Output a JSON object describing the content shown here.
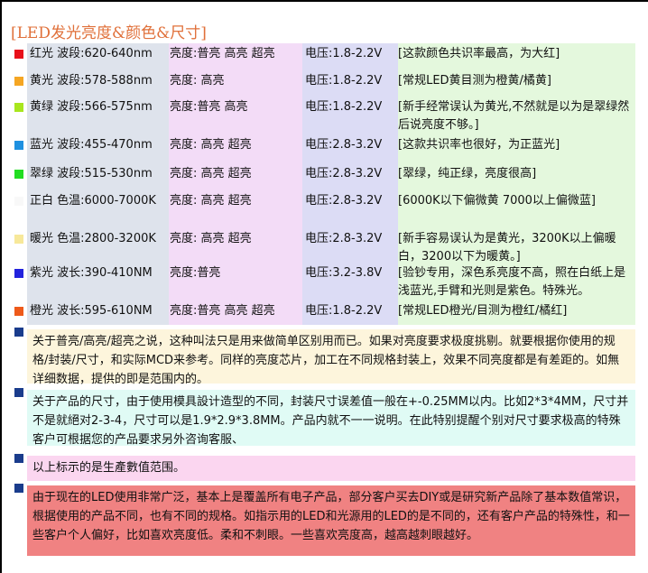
{
  "title": "[LED发光亮度&颜色&尺寸]",
  "rows": [
    {
      "color": "#e8101a",
      "name": "红光 波段:620-640nm",
      "brightness": "亮度:普亮 高亮 超亮",
      "voltage": "电压:1.8-2.2V",
      "note": "[这款颜色共识率最高，为大红]"
    },
    {
      "color": "#f5a623",
      "name": "黄光 波段:578-588nm",
      "brightness": "亮度:      高亮",
      "voltage": "电压:1.8-2.2V",
      "note": "[常规LED黄目测为橙黄/橘黄]"
    },
    {
      "color": "#a8e61e",
      "name": "黄绿 波段:566-575nm",
      "brightness": "亮度:普亮 高亮",
      "voltage": "电压:1.8-2.2V",
      "note": "[新手经常误认为黄光,不然就是以为是翠绿然后说亮度不够。]"
    },
    {
      "color": "#1e90e0",
      "name": "蓝光 波段:455-470nm",
      "brightness": "亮度:      高亮 超亮",
      "voltage": "电压:2.8-3.2V",
      "note": "[这款共识率也很好，为正蓝光]"
    },
    {
      "color": "#22dd22",
      "name": "翠绿 波段:515-530nm",
      "brightness": "亮度:      高亮 超亮",
      "voltage": "电压:2.8-3.2V",
      "note": "[翠绿，纯正绿，亮度很高]"
    },
    {
      "color": "#f8f8f8",
      "name": "正白 色温:6000-7000K",
      "brightness": "亮度:      高亮 超亮",
      "voltage": "电压:2.8-3.2V",
      "note": "[6000K以下偏微黄   7000以上偏微蓝]"
    },
    {
      "color": "#f7e89a",
      "name": "暖光 色温:2800-3200K",
      "brightness": "亮度:      高亮 超亮",
      "voltage": "电压:2.8-3.2V",
      "note": "[新手容易误认为是黄光，3200K以上偏暖白，3200以下为暖黄。]"
    },
    {
      "color": "#2222dd",
      "name": "紫光 波长:390-410NM",
      "brightness": "亮度:普亮",
      "voltage": "电压:3.2-3.8V",
      "note": "[验钞专用，深色系亮度不高，照在白纸上是浅蓝光,手臂和光则是紫色。特殊光。"
    },
    {
      "color": "#ee5a1a",
      "name": "橙光 波长:595-610NM",
      "brightness": "亮度:普亮 高亮 超亮",
      "voltage": "电压:1.8-2.2V",
      "note": "[常规LED橙光/目测为橙红/橘红]"
    }
  ],
  "notes": [
    {
      "bg": "#fdf5dc",
      "text": "关于普亮/高亮/超亮之说，这种叫法只是用来做简单区别用而已。如果对亮度要求极度挑剔。就要根据你使用的规格/封装/尺寸，和实际MCD来参考。同样的亮度芯片，加工在不同规格封装上，效果不同亮度都是有差距的。如無详细数据，提供的即是范围内的。"
    },
    {
      "bg": "#e0fbf5",
      "text": "关于产品的尺寸，由于使用模具設计造型的不同，封装尺寸误差值一般在+-0.25MM以内。比如2*3*4MM，尺寸并不是就絕对2-3-4，尺寸可以是1.9*2.9*3.8MM。产品内就不一一说明。在此特别提醒个别对尺寸要求极高的特殊客户可根据您的产品要求另外咨询客服、"
    },
    {
      "bg": "#fbd6f0",
      "text": "以上标示的是生產數值范围。"
    },
    {
      "bg": "#f08282",
      "text": "由于现在的LED使用非常广泛，基本上是覆盖所有电子产品，部分客户买去DIY或是研究新产品除了基本数值常识，根据使用的产品不同，也有不同的规格。如指示用的LED和光源用的LED的是不同的，还有客户产品的特殊性，和一些客户个人偏好，比如喜欢亮度低。柔和不刺眼。一些喜欢亮度高，越高越刺眼越好。"
    }
  ]
}
